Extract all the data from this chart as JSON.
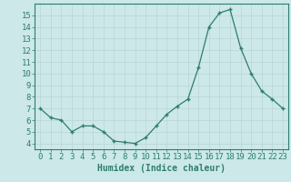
{
  "x": [
    0,
    1,
    2,
    3,
    4,
    5,
    6,
    7,
    8,
    9,
    10,
    11,
    12,
    13,
    14,
    15,
    16,
    17,
    18,
    19,
    20,
    21,
    22,
    23
  ],
  "y": [
    7.0,
    6.2,
    6.0,
    5.0,
    5.5,
    5.5,
    5.0,
    4.2,
    4.1,
    4.0,
    4.5,
    5.5,
    6.5,
    7.2,
    7.8,
    10.5,
    14.0,
    15.2,
    15.5,
    12.2,
    10.0,
    8.5,
    7.8,
    7.0
  ],
  "xlabel": "Humidex (Indice chaleur)",
  "ylabel": "",
  "ylim": [
    3.5,
    16.0
  ],
  "xlim": [
    -0.5,
    23.5
  ],
  "line_color": "#2e7d6e",
  "bg_color": "#cce8e8",
  "grid_color": "#b8d4d4",
  "tick_fontsize": 6.5
}
